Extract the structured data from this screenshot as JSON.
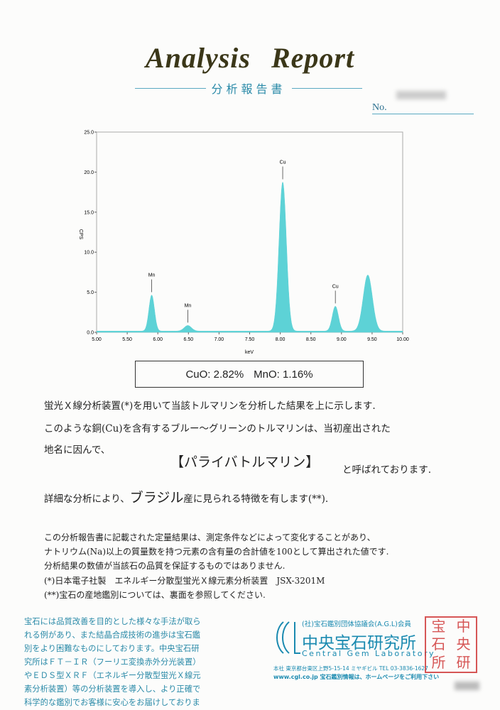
{
  "header": {
    "title": "Analysis  Report",
    "subtitle": "分析報告書",
    "no_label": "No."
  },
  "chart_data": {
    "type": "area",
    "xlabel": "keV",
    "ylabel": "CPS",
    "xlim": [
      5.0,
      10.0
    ],
    "ylim": [
      0,
      25.0
    ],
    "x_ticks": [
      "5.00",
      "5.50",
      "6.00",
      "6.50",
      "7.00",
      "7.50",
      "8.00",
      "8.50",
      "9.00",
      "9.50",
      "10.00"
    ],
    "y_ticks": [
      "0.0",
      "5.0",
      "10.0",
      "15.0",
      "20.0",
      "25.0"
    ],
    "grid": false,
    "fill_color": "#5dd2d6",
    "baseline": 0.15,
    "peaks": [
      {
        "label": "Mn",
        "x": 5.9,
        "y": 4.5,
        "sigma": 0.045
      },
      {
        "label": "Mn",
        "x": 6.49,
        "y": 0.7,
        "sigma": 0.06
      },
      {
        "label": "Cu",
        "x": 8.04,
        "y": 18.6,
        "sigma": 0.06
      },
      {
        "label": "Cu",
        "x": 8.9,
        "y": 3.1,
        "sigma": 0.05
      },
      {
        "label": "",
        "x": 9.43,
        "y": 7.0,
        "sigma": 0.075
      }
    ]
  },
  "result": {
    "cuo": "CuO: 2.82%",
    "mno": "MnO: 1.16%"
  },
  "body": {
    "line1": "蛍光Ｘ線分析装置(*)を用いて当該トルマリンを分析した結果を上に示します.",
    "line2": "このような銅(Cu)を含有するブルー～グリーンのトルマリンは、当初産出された",
    "line3": "地名に因んで、",
    "name": "【パライバトルマリン】",
    "line4": "と呼ばれております.",
    "line5a": "詳細な分析により、",
    "origin": "ブラジル",
    "line5b": "産に見られる特徴を有します(**)."
  },
  "notes": [
    "この分析報告書に記載された定量結果は、測定条件などによって変化することがあり、",
    "ナトリウム(Na)以上の質量数を持つ元素の含有量の合計値を100として算出された値です.",
    "分析結果の数値が当該石の品質を保証するものではありません.",
    "(*)日本電子社製　エネルギー分散型蛍光Ｘ線元素分析装置　JSX-3201M",
    "(**)宝石の産地鑑別については、裏面を参照してください."
  ],
  "blurb": "宝石には品質改善を目的とした様々な手法が取られる例があり、また結晶合成技術の進歩は宝石鑑別をより困難なものにしております。中央宝石研究所はＦＴ－ＩＲ（フーリエ変換赤外分光装置）やＥＤＳ型ＸＲＦ（エネルギー分散型蛍光Ｘ線元素分析装置）等の分析装置を導入し、より正確で科学的な鑑別でお客様に安心をお届けしております。",
  "lab": {
    "association": "(社)宝石鑑別団体協議会(A.G.L)会員",
    "name_ja": "中央宝石研究所",
    "name_en": "Central Gem Laboratory",
    "address": "本社 東京都台東区上野5-15-14 ミヤギビル TEL 03-3836-1627",
    "web": "www.cgl.co.jp 宝石鑑別情報は、ホームページをご利用下さい",
    "seal": "中央宝石研究所"
  }
}
